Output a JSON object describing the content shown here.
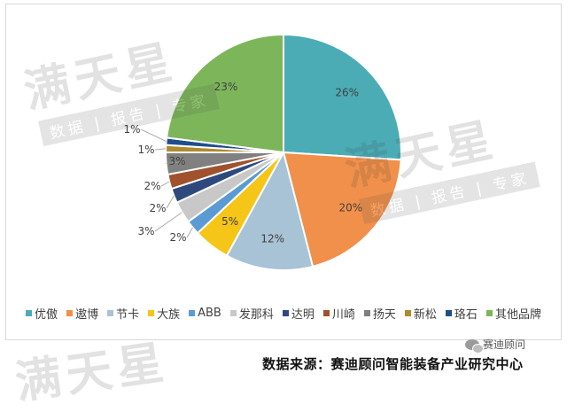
{
  "chart_data": {
    "type": "pie",
    "title": "",
    "categories": [
      "优傲",
      "遨博",
      "节卡",
      "大族",
      "ABB",
      "发那科",
      "达明",
      "川崎",
      "扬天",
      "新松",
      "珞石",
      "其他品牌"
    ],
    "values": [
      26,
      20,
      12,
      5,
      2,
      3,
      2,
      2,
      3,
      1,
      1,
      23
    ],
    "data_labels": [
      "26%",
      "20%",
      "12%",
      "5%",
      "2%",
      "3%",
      "2%",
      "2%",
      "3%",
      "1%",
      "1%",
      "23%"
    ],
    "colors": [
      "#4bacb6",
      "#f0904a",
      "#a8c2d6",
      "#f5c518",
      "#5b9bd5",
      "#c8c8c8",
      "#2e4a7d",
      "#a0522d",
      "#808080",
      "#b08a2e",
      "#1f4e8c",
      "#7db65a"
    ],
    "legend_position": "bottom"
  },
  "watermark": {
    "brand": "满天星",
    "tagline": "数据 | 报告 | 专家",
    "icon": "sun-icon"
  },
  "source_text": "数据来源：赛迪顾问智能装备产业研究中心",
  "wechat_label": "赛迪顾问",
  "wechat_icon": "wechat-icon"
}
